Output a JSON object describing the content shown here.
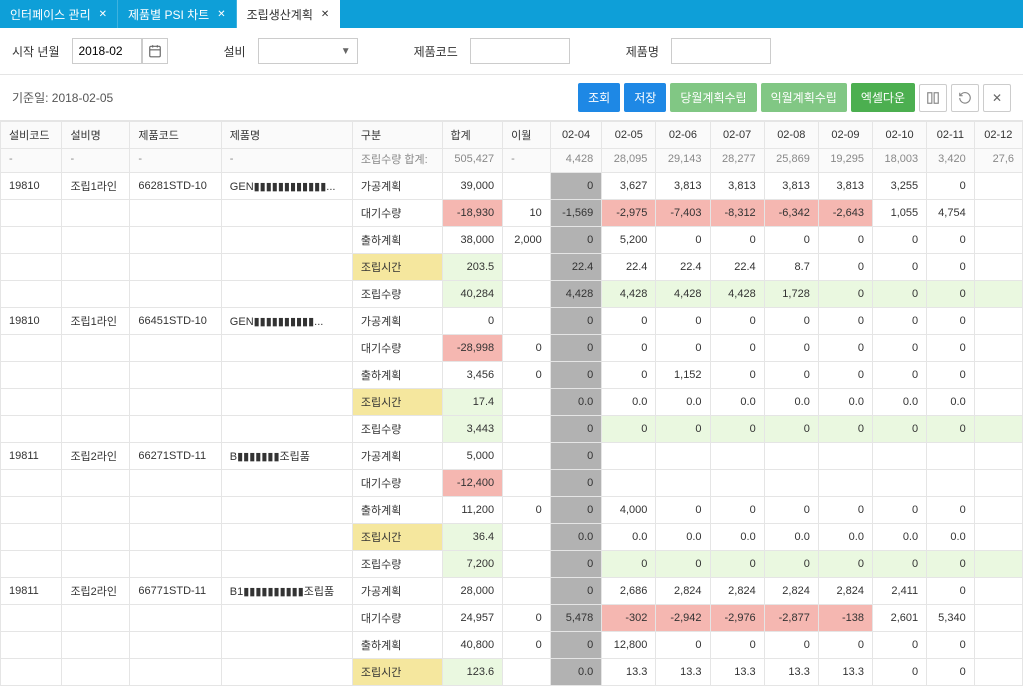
{
  "tabs": [
    {
      "label": "인터페이스 관리",
      "active": false
    },
    {
      "label": "제품별 PSI 차트",
      "active": false
    },
    {
      "label": "조립생산계획",
      "active": true
    }
  ],
  "filters": {
    "start_label": "시작 년월",
    "start_value": "2018-02",
    "equip_label": "설비",
    "equip_value": "",
    "pcode_label": "제품코드",
    "pcode_value": "",
    "pname_label": "제품명",
    "pname_value": ""
  },
  "basis_label": "기준일: 2018-02-05",
  "buttons": {
    "search": {
      "label": "조회",
      "color": "#1e88e5"
    },
    "save": {
      "label": "저장",
      "color": "#1e88e5"
    },
    "month_import": {
      "label": "당월계획수립",
      "color": "#81c784"
    },
    "month_plan": {
      "label": "익월계획수립",
      "color": "#81c784"
    },
    "excel": {
      "label": "엑셀다운",
      "color": "#4caf50"
    }
  },
  "headers": {
    "equip_code": "설비코드",
    "equip_name": "설비명",
    "prod_code": "제품코드",
    "prod_name": "제품명",
    "division": "구분",
    "total": "합계",
    "carry": "이월",
    "sub_total": "조립수량 합계:",
    "sub_total_val": "505,427",
    "dates": [
      "02-04",
      "02-05",
      "02-06",
      "02-07",
      "02-08",
      "02-09",
      "02-10",
      "02-11",
      "02-12"
    ],
    "date_totals": [
      "4,428",
      "28,095",
      "29,143",
      "28,277",
      "25,869",
      "19,295",
      "18,003",
      "3,420",
      "27,6"
    ]
  },
  "rows": [
    {
      "equip_code": "19810",
      "equip_name": "조립1라인",
      "prod_code": "66281STD-10",
      "prod_name": "GEN▮▮▮▮▮▮▮▮▮▮▮▮...",
      "sub": [
        {
          "label": "가공계획",
          "total": "39,000",
          "carry": "",
          "vals": [
            "0",
            "3,627",
            "3,813",
            "3,813",
            "3,813",
            "3,813",
            "3,255",
            "0",
            ""
          ],
          "cls": [
            "gray",
            "",
            "",
            "",
            "",
            "",
            "",
            "",
            ""
          ],
          "tot_cls": ""
        },
        {
          "label": "대기수량",
          "total": "-18,930",
          "carry": "10",
          "vals": [
            "-1,569",
            "-2,975",
            "-7,403",
            "-8,312",
            "-6,342",
            "-2,643",
            "1,055",
            "4,754",
            ""
          ],
          "cls": [
            "gray",
            "pink",
            "pink",
            "pink",
            "pink",
            "pink",
            "",
            "",
            ""
          ],
          "tot_cls": "pink"
        },
        {
          "label": "출하계획",
          "total": "38,000",
          "carry": "2,000",
          "vals": [
            "0",
            "5,200",
            "0",
            "0",
            "0",
            "0",
            "0",
            "0",
            ""
          ],
          "cls": [
            "gray",
            "",
            "",
            "",
            "",
            "",
            "",
            "",
            ""
          ],
          "tot_cls": ""
        },
        {
          "label": "조립시간",
          "label_cls": "yel",
          "total": "203.5",
          "carry": "",
          "vals": [
            "22.4",
            "22.4",
            "22.4",
            "22.4",
            "8.7",
            "0",
            "0",
            "0",
            ""
          ],
          "cls": [
            "gray",
            "",
            "",
            "",
            "",
            "",
            "",
            "",
            ""
          ],
          "tot_cls": "lgreen"
        },
        {
          "label": "조립수량",
          "total": "40,284",
          "carry": "",
          "vals": [
            "4,428",
            "4,428",
            "4,428",
            "4,428",
            "1,728",
            "0",
            "0",
            "0",
            ""
          ],
          "cls": [
            "gray",
            "lgreen",
            "lgreen",
            "lgreen",
            "lgreen",
            "lgreen",
            "lgreen",
            "lgreen",
            "lgreen"
          ],
          "tot_cls": "lgreen"
        }
      ]
    },
    {
      "equip_code": "19810",
      "equip_name": "조립1라인",
      "prod_code": "66451STD-10",
      "prod_name": "GEN▮▮▮▮▮▮▮▮▮▮...",
      "sub": [
        {
          "label": "가공계획",
          "total": "0",
          "carry": "",
          "vals": [
            "0",
            "0",
            "0",
            "0",
            "0",
            "0",
            "0",
            "0",
            ""
          ],
          "cls": [
            "gray",
            "",
            "",
            "",
            "",
            "",
            "",
            "",
            ""
          ],
          "tot_cls": ""
        },
        {
          "label": "대기수량",
          "total": "-28,998",
          "carry": "0",
          "vals": [
            "0",
            "0",
            "0",
            "0",
            "0",
            "0",
            "0",
            "0",
            ""
          ],
          "cls": [
            "gray",
            "",
            "",
            "",
            "",
            "",
            "",
            "",
            ""
          ],
          "tot_cls": "pink"
        },
        {
          "label": "출하계획",
          "total": "3,456",
          "carry": "0",
          "vals": [
            "0",
            "0",
            "1,152",
            "0",
            "0",
            "0",
            "0",
            "0",
            ""
          ],
          "cls": [
            "gray",
            "",
            "",
            "",
            "",
            "",
            "",
            "",
            ""
          ],
          "tot_cls": ""
        },
        {
          "label": "조립시간",
          "label_cls": "yel",
          "total": "17.4",
          "carry": "",
          "vals": [
            "0.0",
            "0.0",
            "0.0",
            "0.0",
            "0.0",
            "0.0",
            "0.0",
            "0.0",
            ""
          ],
          "cls": [
            "gray",
            "",
            "",
            "",
            "",
            "",
            "",
            "",
            ""
          ],
          "tot_cls": "lgreen"
        },
        {
          "label": "조립수량",
          "total": "3,443",
          "carry": "",
          "vals": [
            "0",
            "0",
            "0",
            "0",
            "0",
            "0",
            "0",
            "0",
            ""
          ],
          "cls": [
            "gray",
            "lgreen",
            "lgreen",
            "lgreen",
            "lgreen",
            "lgreen",
            "lgreen",
            "lgreen",
            "lgreen"
          ],
          "tot_cls": "lgreen"
        }
      ]
    },
    {
      "equip_code": "19811",
      "equip_name": "조립2라인",
      "prod_code": "66271STD-11",
      "prod_name": "B▮▮▮▮▮▮▮조립품",
      "sub": [
        {
          "label": "가공계획",
          "total": "5,000",
          "carry": "",
          "vals": [
            "0",
            "",
            "",
            "",
            "",
            "",
            "",
            "",
            ""
          ],
          "cls": [
            "gray",
            "",
            "",
            "",
            "",
            "",
            "",
            "",
            ""
          ],
          "tot_cls": ""
        },
        {
          "label": "대기수량",
          "total": "-12,400",
          "carry": "",
          "vals": [
            "0",
            "",
            "",
            "",
            "",
            "",
            "",
            "",
            ""
          ],
          "cls": [
            "gray",
            "",
            "",
            "",
            "",
            "",
            "",
            "",
            ""
          ],
          "tot_cls": "pink"
        },
        {
          "label": "출하계획",
          "total": "11,200",
          "carry": "0",
          "vals": [
            "0",
            "4,000",
            "0",
            "0",
            "0",
            "0",
            "0",
            "0",
            ""
          ],
          "cls": [
            "gray",
            "",
            "",
            "",
            "",
            "",
            "",
            "",
            ""
          ],
          "tot_cls": ""
        },
        {
          "label": "조립시간",
          "label_cls": "yel",
          "total": "36.4",
          "carry": "",
          "vals": [
            "0.0",
            "0.0",
            "0.0",
            "0.0",
            "0.0",
            "0.0",
            "0.0",
            "0.0",
            ""
          ],
          "cls": [
            "gray",
            "",
            "",
            "",
            "",
            "",
            "",
            "",
            ""
          ],
          "tot_cls": "lgreen"
        },
        {
          "label": "조립수량",
          "total": "7,200",
          "carry": "",
          "vals": [
            "0",
            "0",
            "0",
            "0",
            "0",
            "0",
            "0",
            "0",
            ""
          ],
          "cls": [
            "gray",
            "lgreen",
            "lgreen",
            "lgreen",
            "lgreen",
            "lgreen",
            "lgreen",
            "lgreen",
            "lgreen"
          ],
          "tot_cls": "lgreen"
        }
      ]
    },
    {
      "equip_code": "19811",
      "equip_name": "조립2라인",
      "prod_code": "66771STD-11",
      "prod_name": "B1▮▮▮▮▮▮▮▮▮▮조립품",
      "sub": [
        {
          "label": "가공계획",
          "total": "28,000",
          "carry": "",
          "vals": [
            "0",
            "2,686",
            "2,824",
            "2,824",
            "2,824",
            "2,824",
            "2,411",
            "0",
            ""
          ],
          "cls": [
            "gray",
            "",
            "",
            "",
            "",
            "",
            "",
            "",
            ""
          ],
          "tot_cls": ""
        },
        {
          "label": "대기수량",
          "total": "24,957",
          "carry": "0",
          "vals": [
            "5,478",
            "-302",
            "-2,942",
            "-2,976",
            "-2,877",
            "-138",
            "2,601",
            "5,340",
            ""
          ],
          "cls": [
            "gray",
            "pink",
            "pink",
            "pink",
            "pink",
            "pink",
            "",
            "",
            ""
          ],
          "tot_cls": ""
        },
        {
          "label": "출하계획",
          "total": "40,800",
          "carry": "0",
          "vals": [
            "0",
            "12,800",
            "0",
            "0",
            "0",
            "0",
            "0",
            "0",
            ""
          ],
          "cls": [
            "gray",
            "",
            "",
            "",
            "",
            "",
            "",
            "",
            ""
          ],
          "tot_cls": ""
        },
        {
          "label": "조립시간",
          "label_cls": "yel",
          "total": "123.6",
          "carry": "",
          "vals": [
            "0.0",
            "13.3",
            "13.3",
            "13.3",
            "13.3",
            "13.3",
            "0",
            "0",
            ""
          ],
          "cls": [
            "gray",
            "",
            "",
            "",
            "",
            "",
            "",
            "",
            ""
          ],
          "tot_cls": "lgreen"
        }
      ]
    }
  ]
}
